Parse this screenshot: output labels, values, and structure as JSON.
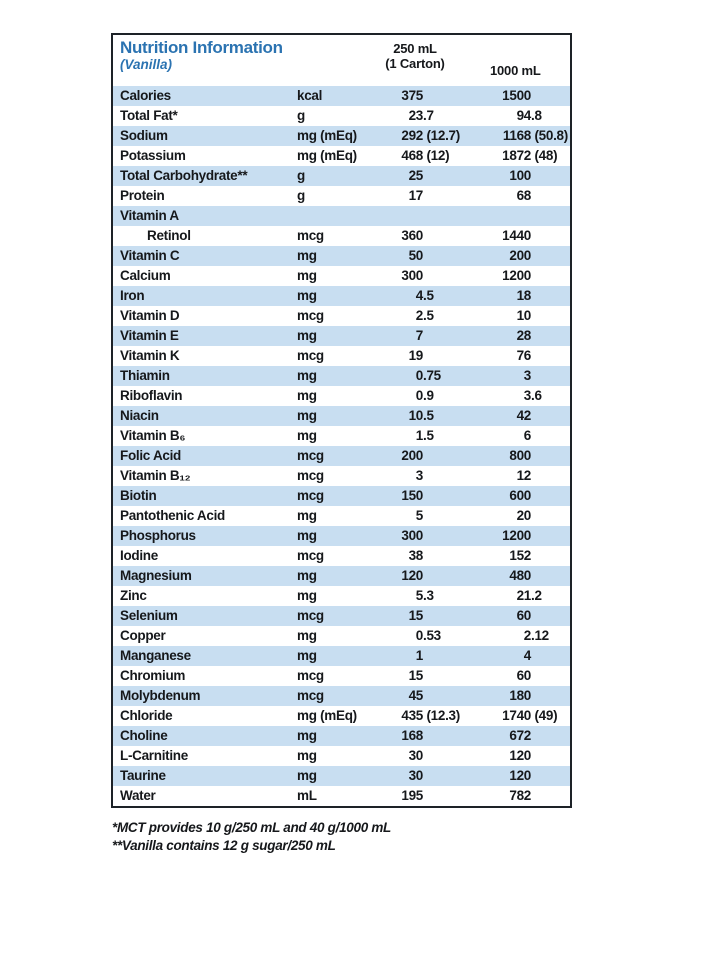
{
  "colors": {
    "row_blue": "#c8def1",
    "title_blue": "#2b73b1",
    "border_dark": "#1d2227",
    "text_dark": "#16181b"
  },
  "table": {
    "title": "Nutrition Information",
    "subtitle": "(Vanilla)",
    "columns": {
      "serving_250_line1": "250 mL",
      "serving_250_line2": "(1 Carton)",
      "serving_1000": "1000 mL"
    },
    "rows": [
      {
        "label": "Calories",
        "unit": "kcal",
        "v250": "375",
        "v1000": "1500",
        "indent": false
      },
      {
        "label": "Total Fat*",
        "unit": "g",
        "v250": "23.7",
        "v1000": "94.8",
        "indent": false
      },
      {
        "label": "Sodium",
        "unit": "mg (mEq)",
        "v250": "292 (12.7)",
        "v1000": "1168 (50.8)",
        "indent": false
      },
      {
        "label": "Potassium",
        "unit": "mg (mEq)",
        "v250": "468 (12)",
        "v1000": "1872 (48)",
        "indent": false
      },
      {
        "label": "Total Carbohydrate**",
        "unit": "g",
        "v250": "25",
        "v1000": "100",
        "indent": false
      },
      {
        "label": "Protein",
        "unit": "g",
        "v250": "17",
        "v1000": "68",
        "indent": false
      },
      {
        "label": "Vitamin A",
        "unit": "",
        "v250": "",
        "v1000": "",
        "indent": false
      },
      {
        "label": "Retinol",
        "unit": "mcg",
        "v250": "360",
        "v1000": "1440",
        "indent": true
      },
      {
        "label": "Vitamin C",
        "unit": "mg",
        "v250": "50",
        "v1000": "200",
        "indent": false
      },
      {
        "label": "Calcium",
        "unit": "mg",
        "v250": "300",
        "v1000": "1200",
        "indent": false
      },
      {
        "label": "Iron",
        "unit": "mg",
        "v250": "4.5",
        "v1000": "18",
        "indent": false
      },
      {
        "label": "Vitamin D",
        "unit": "mcg",
        "v250": "2.5",
        "v1000": "10",
        "indent": false
      },
      {
        "label": "Vitamin E",
        "unit": "mg",
        "v250": "7",
        "v1000": "28",
        "indent": false
      },
      {
        "label": "Vitamin K",
        "unit": "mcg",
        "v250": "19",
        "v1000": "76",
        "indent": false
      },
      {
        "label": "Thiamin",
        "unit": "mg",
        "v250": "0.75",
        "v1000": "3",
        "indent": false
      },
      {
        "label": "Riboflavin",
        "unit": "mg",
        "v250": "0.9",
        "v1000": "3.6",
        "indent": false
      },
      {
        "label": "Niacin",
        "unit": "mg",
        "v250": "10.5",
        "v1000": "42",
        "indent": false
      },
      {
        "label": "Vitamin B₆",
        "unit": "mg",
        "v250": "1.5",
        "v1000": "6",
        "indent": false
      },
      {
        "label": "Folic Acid",
        "unit": "mcg",
        "v250": "200",
        "v1000": "800",
        "indent": false
      },
      {
        "label": "Vitamin B₁₂",
        "unit": "mcg",
        "v250": "3",
        "v1000": "12",
        "indent": false
      },
      {
        "label": "Biotin",
        "unit": "mcg",
        "v250": "150",
        "v1000": "600",
        "indent": false
      },
      {
        "label": "Pantothenic Acid",
        "unit": "mg",
        "v250": "5",
        "v1000": "20",
        "indent": false
      },
      {
        "label": "Phosphorus",
        "unit": "mg",
        "v250": "300",
        "v1000": "1200",
        "indent": false
      },
      {
        "label": "Iodine",
        "unit": "mcg",
        "v250": "38",
        "v1000": "152",
        "indent": false
      },
      {
        "label": "Magnesium",
        "unit": "mg",
        "v250": "120",
        "v1000": "480",
        "indent": false
      },
      {
        "label": "Zinc",
        "unit": "mg",
        "v250": "5.3",
        "v1000": "21.2",
        "indent": false
      },
      {
        "label": "Selenium",
        "unit": "mcg",
        "v250": "15",
        "v1000": "60",
        "indent": false
      },
      {
        "label": "Copper",
        "unit": "mg",
        "v250": "0.53",
        "v1000": "2.12",
        "indent": false
      },
      {
        "label": "Manganese",
        "unit": "mg",
        "v250": "1",
        "v1000": "4",
        "indent": false
      },
      {
        "label": "Chromium",
        "unit": "mcg",
        "v250": "15",
        "v1000": "60",
        "indent": false
      },
      {
        "label": "Molybdenum",
        "unit": "mcg",
        "v250": "45",
        "v1000": "180",
        "indent": false
      },
      {
        "label": "Chloride",
        "unit": "mg (mEq)",
        "v250": "435 (12.3)",
        "v1000": "1740 (49)",
        "indent": false
      },
      {
        "label": "Choline",
        "unit": "mg",
        "v250": "168",
        "v1000": "672",
        "indent": false
      },
      {
        "label": "L-Carnitine",
        "unit": "mg",
        "v250": "30",
        "v1000": "120",
        "indent": false
      },
      {
        "label": "Taurine",
        "unit": "mg",
        "v250": "30",
        "v1000": "120",
        "indent": false
      },
      {
        "label": "Water",
        "unit": "mL",
        "v250": "195",
        "v1000": "782",
        "indent": false
      }
    ]
  },
  "footnotes": {
    "mct": "*MCT provides 10 g/250 mL and 40 g/1000 mL",
    "vanilla": "**Vanilla contains 12 g sugar/250 mL"
  }
}
